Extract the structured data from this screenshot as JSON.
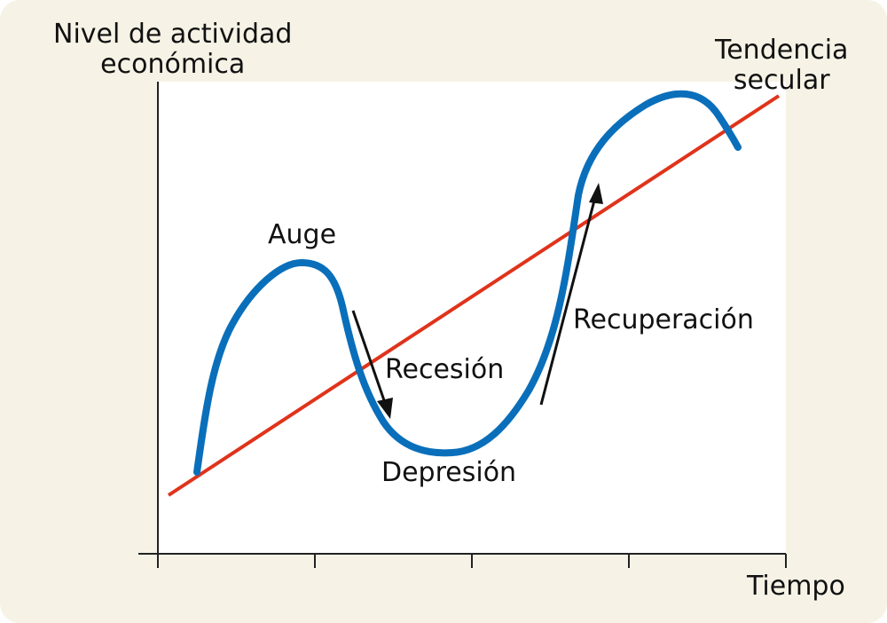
{
  "axes": {
    "y_label_line1": "Nivel de actividad",
    "y_label_line2": "económica",
    "x_label": "Tiempo"
  },
  "trend": {
    "label_line1": "Tendencia",
    "label_line2": "secular",
    "color": "#e0331b"
  },
  "cycle": {
    "color": "#0a6fba",
    "phases": {
      "boom": "Auge",
      "recession": "Recesión",
      "depression": "Depresión",
      "recovery": "Recuperación"
    }
  },
  "colors": {
    "background": "#f6f3e6",
    "plot": "#ffffff",
    "axis": "#222222",
    "arrow": "#111111"
  }
}
